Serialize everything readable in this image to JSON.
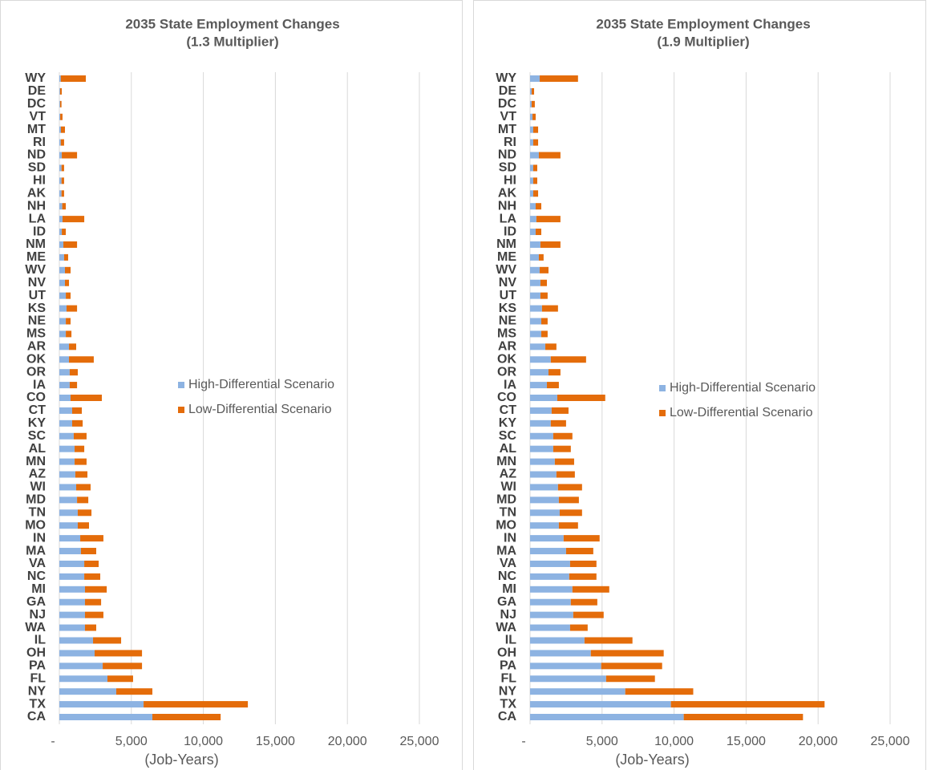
{
  "chart_data": [
    {
      "type": "bar",
      "orientation": "horizontal",
      "stacked": true,
      "title": "2035 State Employment Changes",
      "subtitle": "(1.3 Multiplier)",
      "x_label": "(Job-Years)",
      "categories": [
        "WY",
        "DE",
        "DC",
        "VT",
        "MT",
        "RI",
        "ND",
        "SD",
        "HI",
        "AK",
        "NH",
        "LA",
        "ID",
        "NM",
        "ME",
        "WV",
        "NV",
        "UT",
        "KS",
        "NE",
        "MS",
        "AR",
        "OK",
        "OR",
        "IA",
        "CO",
        "CT",
        "KY",
        "SC",
        "AL",
        "MN",
        "AZ",
        "WI",
        "MD",
        "TN",
        "MO",
        "IN",
        "MA",
        "VA",
        "NC",
        "MI",
        "GA",
        "NJ",
        "WA",
        "IL",
        "OH",
        "PA",
        "FL",
        "NY",
        "TX",
        "CA"
      ],
      "series": [
        {
          "name": "High-Differential Scenario",
          "color": "#8db3e2",
          "values": [
            100,
            50,
            50,
            60,
            110,
            100,
            170,
            150,
            150,
            150,
            200,
            220,
            170,
            280,
            330,
            390,
            390,
            450,
            500,
            450,
            450,
            670,
            670,
            720,
            720,
            780,
            890,
            890,
            1000,
            1060,
            1060,
            1110,
            1170,
            1230,
            1280,
            1280,
            1450,
            1500,
            1730,
            1730,
            1780,
            1780,
            1780,
            1780,
            2340,
            2450,
            3010,
            3340,
            3950,
            5850,
            6460
          ]
        },
        {
          "name": "Low-Differential Scenario",
          "color": "#e46c0a",
          "values": [
            1740,
            120,
            100,
            160,
            280,
            230,
            1060,
            180,
            180,
            180,
            250,
            1510,
            280,
            950,
            280,
            390,
            280,
            330,
            730,
            330,
            390,
            500,
            1720,
            560,
            510,
            2170,
            670,
            730,
            890,
            670,
            830,
            840,
            1000,
            780,
            950,
            780,
            1610,
            1060,
            1000,
            1110,
            1510,
            1120,
            1280,
            780,
            1950,
            3290,
            2730,
            1780,
            2510,
            7240,
            4740
          ]
        }
      ],
      "xlim": [
        0,
        25000
      ],
      "xticks": [
        {
          "value": 0,
          "label": "-"
        },
        {
          "value": 5000,
          "label": "5,000"
        },
        {
          "value": 10000,
          "label": "10,000"
        },
        {
          "value": 15000,
          "label": "15,000"
        },
        {
          "value": 20000,
          "label": "20,000"
        },
        {
          "value": 25000,
          "label": "25,000"
        }
      ],
      "grid": true
    },
    {
      "type": "bar",
      "orientation": "horizontal",
      "stacked": true,
      "title": "2035 State Employment Changes",
      "subtitle": "(1.9 Multiplier)",
      "x_label": "(Job-Years)",
      "categories": [
        "WY",
        "DE",
        "DC",
        "VT",
        "MT",
        "RI",
        "ND",
        "SD",
        "HI",
        "AK",
        "NH",
        "LA",
        "ID",
        "NM",
        "ME",
        "WV",
        "NV",
        "UT",
        "KS",
        "NE",
        "MS",
        "AR",
        "OK",
        "OR",
        "IA",
        "CO",
        "CT",
        "KY",
        "SC",
        "AL",
        "MN",
        "AZ",
        "WI",
        "MD",
        "TN",
        "MO",
        "IN",
        "MA",
        "VA",
        "NC",
        "MI",
        "GA",
        "NJ",
        "WA",
        "IL",
        "OH",
        "PA",
        "FL",
        "NY",
        "TX",
        "CA"
      ],
      "series": [
        {
          "name": "High-Differential Scenario",
          "color": "#8db3e2",
          "values": [
            670,
            110,
            110,
            170,
            220,
            220,
            610,
            220,
            220,
            220,
            390,
            440,
            390,
            720,
            610,
            670,
            720,
            720,
            830,
            780,
            780,
            1060,
            1440,
            1280,
            1170,
            1890,
            1500,
            1440,
            1610,
            1610,
            1720,
            1830,
            1940,
            2000,
            2060,
            2000,
            2330,
            2500,
            2780,
            2720,
            2940,
            2830,
            3000,
            2780,
            3780,
            4220,
            4940,
            5280,
            6610,
            9780,
            10670
          ]
        },
        {
          "name": "Low-Differential Scenario",
          "color": "#e46c0a",
          "values": [
            2660,
            170,
            220,
            220,
            340,
            340,
            1500,
            280,
            280,
            340,
            390,
            1670,
            390,
            1390,
            330,
            610,
            450,
            500,
            1110,
            440,
            440,
            770,
            2450,
            830,
            830,
            3330,
            1170,
            1060,
            1330,
            1220,
            1340,
            1280,
            1670,
            1390,
            1550,
            1330,
            2500,
            1890,
            1830,
            1890,
            2560,
            1840,
            2110,
            1220,
            3330,
            5060,
            4230,
            3390,
            4720,
            10670,
            8280
          ]
        }
      ],
      "xlim": [
        0,
        25000
      ],
      "xticks": [
        {
          "value": 0,
          "label": "-"
        },
        {
          "value": 5000,
          "label": "5,000"
        },
        {
          "value": 10000,
          "label": "10,000"
        },
        {
          "value": 15000,
          "label": "15,000"
        },
        {
          "value": 20000,
          "label": "20,000"
        },
        {
          "value": 25000,
          "label": "25,000"
        }
      ],
      "grid": true
    }
  ]
}
